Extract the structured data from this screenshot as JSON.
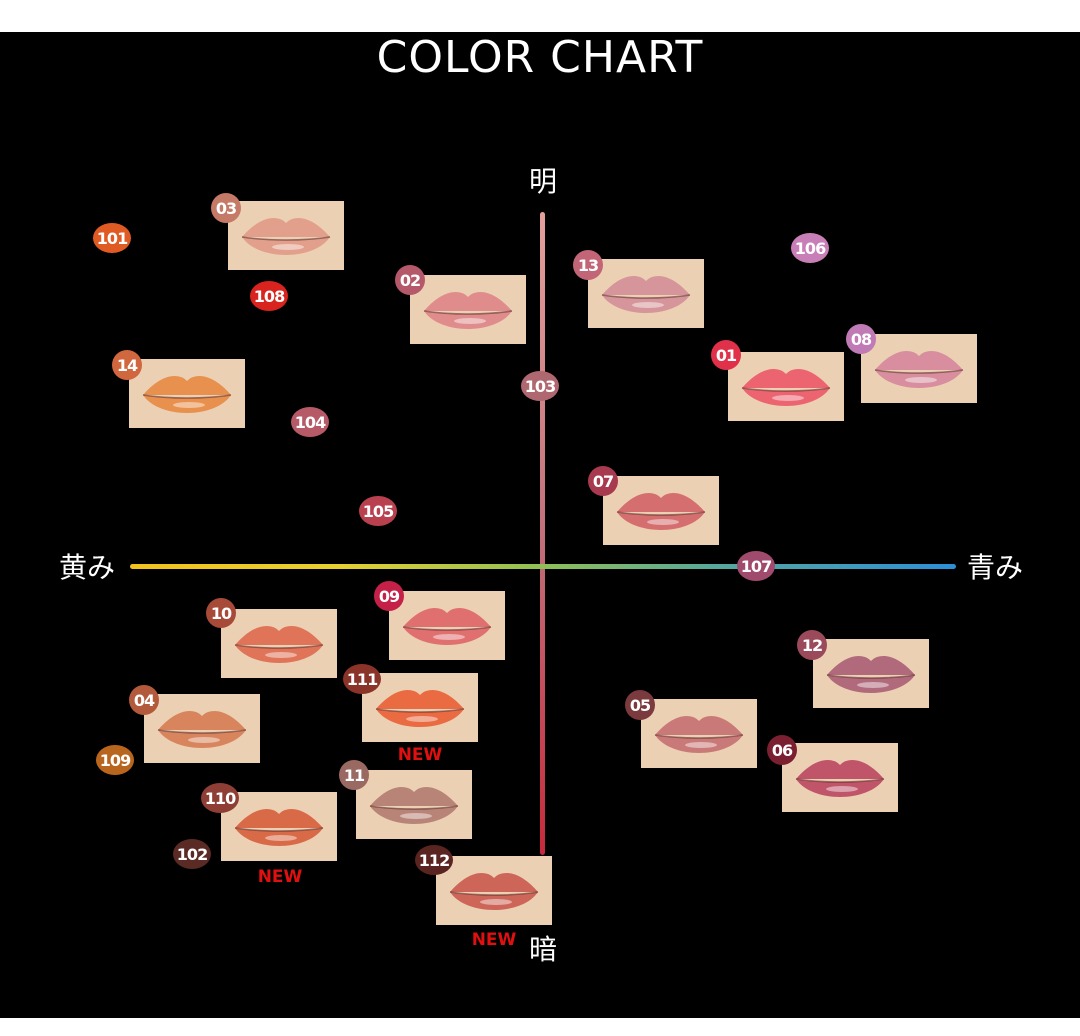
{
  "title": "COLOR CHART",
  "axes": {
    "top": "明",
    "bottom": "暗",
    "left": "黄み",
    "right": "青み"
  },
  "new_label": "NEW",
  "shades": [
    {
      "id": "03",
      "badge_color": "#c47a66",
      "lip_color": "#e2a08c",
      "swatch": true
    },
    {
      "id": "02",
      "badge_color": "#b5586a",
      "lip_color": "#e08c8c",
      "swatch": true
    },
    {
      "id": "14",
      "badge_color": "#d0673e",
      "lip_color": "#e8904e",
      "swatch": true
    },
    {
      "id": "13",
      "badge_color": "#c26577",
      "lip_color": "#d5959a",
      "swatch": true
    },
    {
      "id": "01",
      "badge_color": "#e0304a",
      "lip_color": "#ec6470",
      "swatch": true
    },
    {
      "id": "08",
      "badge_color": "#c07ab5",
      "lip_color": "#d88e9e",
      "swatch": true
    },
    {
      "id": "07",
      "badge_color": "#a83a50",
      "lip_color": "#d56e6e",
      "swatch": true
    },
    {
      "id": "10",
      "badge_color": "#a84a38",
      "lip_color": "#df7458",
      "swatch": true
    },
    {
      "id": "09",
      "badge_color": "#c42048",
      "lip_color": "#e07070",
      "swatch": true
    },
    {
      "id": "04",
      "badge_color": "#b45a3c",
      "lip_color": "#d8855e",
      "swatch": true
    },
    {
      "id": "111",
      "badge_color": "#8a3328",
      "lip_color": "#ea6a42",
      "swatch": true,
      "new": true
    },
    {
      "id": "11",
      "badge_color": "#9a6a62",
      "lip_color": "#b98478",
      "swatch": true
    },
    {
      "id": "110",
      "badge_color": "#8e3e34",
      "lip_color": "#d86a48",
      "swatch": true,
      "new": true
    },
    {
      "id": "112",
      "badge_color": "#5a2420",
      "lip_color": "#cd6658",
      "swatch": true,
      "new": true
    },
    {
      "id": "12",
      "badge_color": "#9a4a5a",
      "lip_color": "#b06a7c",
      "swatch": true
    },
    {
      "id": "05",
      "badge_color": "#7a3a3e",
      "lip_color": "#c97a78",
      "swatch": true
    },
    {
      "id": "06",
      "badge_color": "#7a2030",
      "lip_color": "#c05468",
      "swatch": true
    },
    {
      "id": "101",
      "badge_color": "#e05a23"
    },
    {
      "id": "108",
      "badge_color": "#d8231f"
    },
    {
      "id": "104",
      "badge_color": "#b55a66"
    },
    {
      "id": "105",
      "badge_color": "#b8404f"
    },
    {
      "id": "103",
      "badge_color": "#b06870"
    },
    {
      "id": "106",
      "badge_color": "#c87fb8"
    },
    {
      "id": "107",
      "badge_color": "#a04a6e"
    },
    {
      "id": "109",
      "badge_color": "#b8651e"
    },
    {
      "id": "102",
      "badge_color": "#5a2a24"
    }
  ]
}
